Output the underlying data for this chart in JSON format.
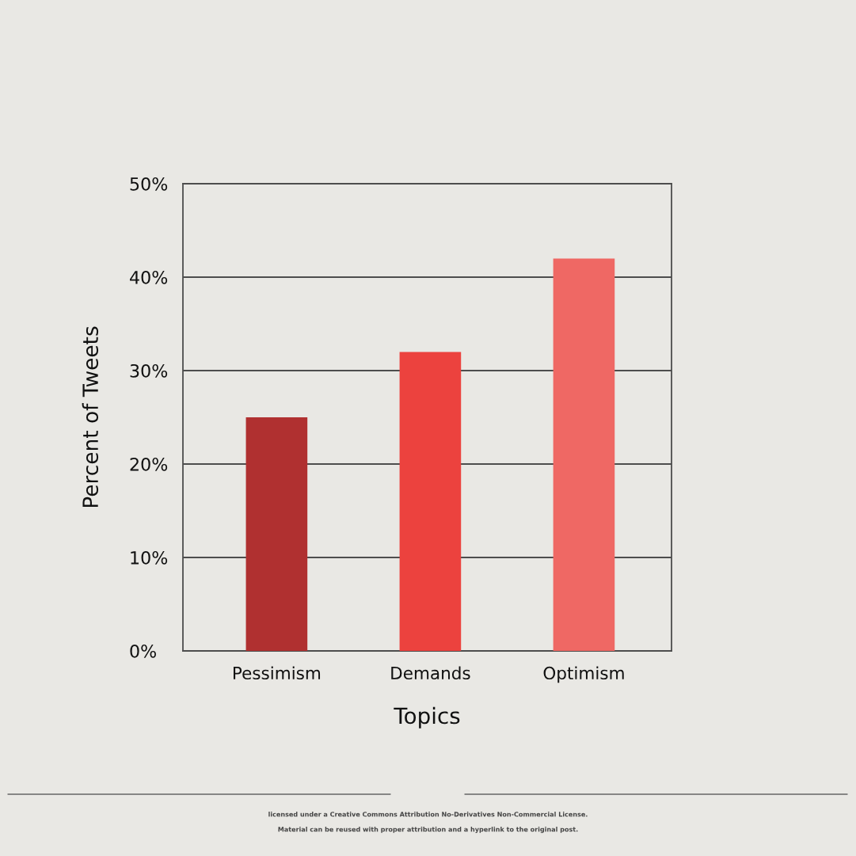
{
  "chart_data": {
    "type": "bar",
    "xlabel": "Topics",
    "ylabel": "Percent of Tweets",
    "categories": [
      "Pessimism",
      "Demands",
      "Optimism"
    ],
    "values": [
      25,
      32,
      42
    ],
    "colors": [
      "#b03030",
      "#ec423e",
      "#ef6864"
    ],
    "ylim": [
      0,
      50
    ],
    "yticks": [
      {
        "value": 0,
        "label": "0%"
      },
      {
        "value": 10,
        "label": "10%"
      },
      {
        "value": 20,
        "label": "20%"
      },
      {
        "value": 30,
        "label": "30%"
      },
      {
        "value": 40,
        "label": "40%"
      },
      {
        "value": 50,
        "label": "50%"
      }
    ],
    "grid": "y",
    "annotations": [
      "licensed under a Creative Commons Attribution No-Derivatives Non-Commercial License.",
      "Material can be reused with proper attribution and a hyperlink to the original post."
    ]
  }
}
